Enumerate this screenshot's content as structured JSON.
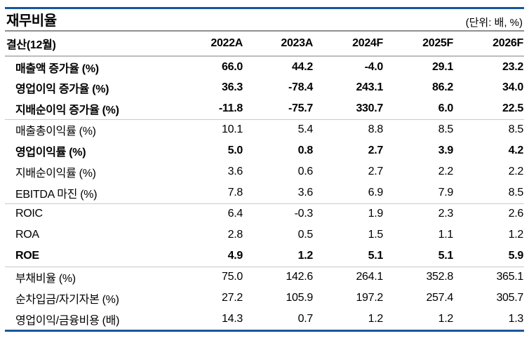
{
  "title": "재무비율",
  "unit_note": "(단위: 배, %)",
  "colors": {
    "accent_rule_blue": "#17579b",
    "title_rule_gray": "#8f8f8f",
    "header_rule_gray": "#bdbdbd",
    "section_rule_gray": "#c9c9c9",
    "text": "#000000",
    "background": "#ffffff"
  },
  "table": {
    "header": {
      "label": "결산(12월)",
      "columns": [
        "2022A",
        "2023A",
        "2024F",
        "2025F",
        "2026F"
      ]
    },
    "sections": [
      {
        "rows": [
          {
            "label": "매출액 증가율 (%)",
            "bold": true,
            "values": [
              "66.0",
              "44.2",
              "-4.0",
              "29.1",
              "23.2"
            ]
          },
          {
            "label": "영업이익 증가율 (%)",
            "bold": true,
            "values": [
              "36.3",
              "-78.4",
              "243.1",
              "86.2",
              "34.0"
            ]
          },
          {
            "label": "지배순이익 증가율 (%)",
            "bold": true,
            "values": [
              "-11.8",
              "-75.7",
              "330.7",
              "6.0",
              "22.5"
            ]
          }
        ]
      },
      {
        "rows": [
          {
            "label": "매출총이익률 (%)",
            "bold": false,
            "values": [
              "10.1",
              "5.4",
              "8.8",
              "8.5",
              "8.5"
            ]
          },
          {
            "label": "영업이익률 (%)",
            "bold": true,
            "values": [
              "5.0",
              "0.8",
              "2.7",
              "3.9",
              "4.2"
            ]
          },
          {
            "label": "지배순이익률 (%)",
            "bold": false,
            "values": [
              "3.6",
              "0.6",
              "2.7",
              "2.2",
              "2.2"
            ]
          },
          {
            "label": "EBITDA 마진 (%)",
            "bold": false,
            "values": [
              "7.8",
              "3.6",
              "6.9",
              "7.9",
              "8.5"
            ]
          }
        ]
      },
      {
        "rows": [
          {
            "label": "ROIC",
            "bold": false,
            "values": [
              "6.4",
              "-0.3",
              "1.9",
              "2.3",
              "2.6"
            ]
          },
          {
            "label": "ROA",
            "bold": false,
            "values": [
              "2.8",
              "0.5",
              "1.5",
              "1.1",
              "1.2"
            ]
          },
          {
            "label": "ROE",
            "bold": true,
            "values": [
              "4.9",
              "1.2",
              "5.1",
              "5.1",
              "5.9"
            ]
          }
        ]
      },
      {
        "rows": [
          {
            "label": "부채비율 (%)",
            "bold": false,
            "values": [
              "75.0",
              "142.6",
              "264.1",
              "352.8",
              "365.1"
            ]
          },
          {
            "label": "순차입금/자기자본 (%)",
            "bold": false,
            "values": [
              "27.2",
              "105.9",
              "197.2",
              "257.4",
              "305.7"
            ]
          },
          {
            "label": "영업이익/금융비용 (배)",
            "bold": false,
            "values": [
              "14.3",
              "0.7",
              "1.2",
              "1.2",
              "1.3"
            ]
          }
        ]
      }
    ]
  }
}
